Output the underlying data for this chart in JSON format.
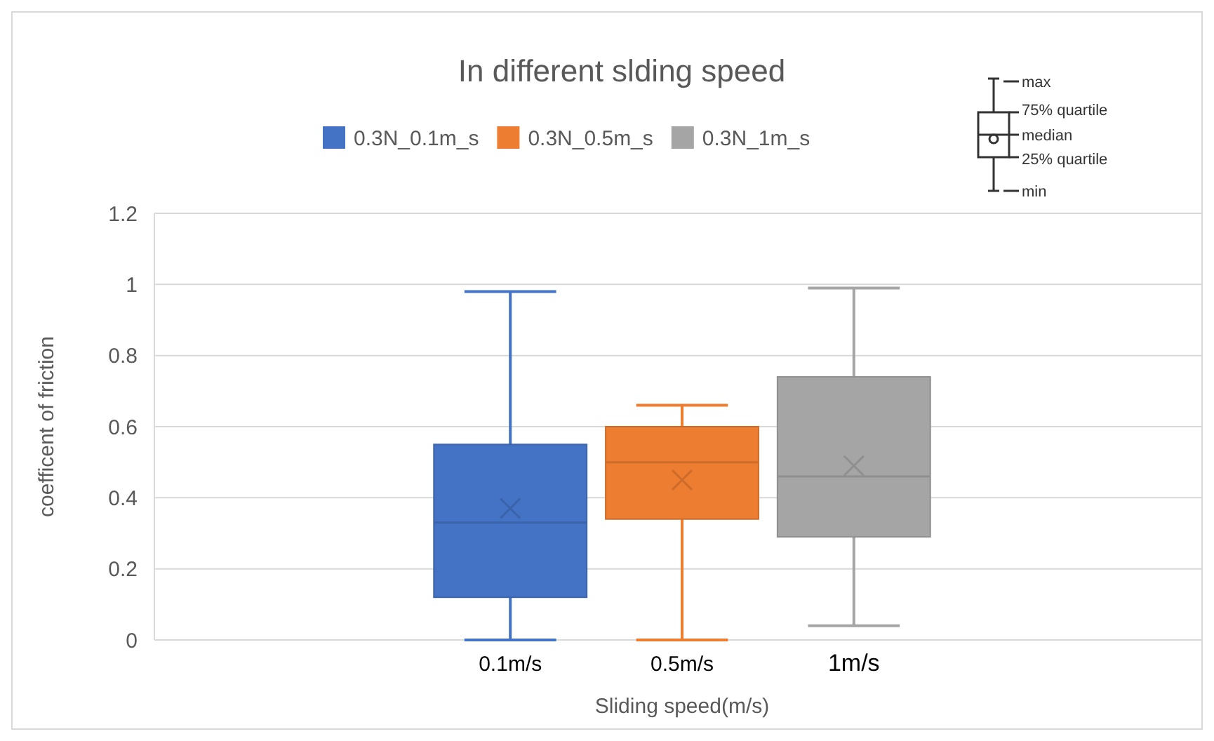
{
  "chart_data": {
    "type": "box",
    "title": "In different slding speed",
    "xlabel": "Sliding speed(m/s)",
    "ylabel": "coefficent of friction",
    "categories": [
      null
    ],
    "series": [
      {
        "name": "0.3N_0.1m_s",
        "color": "#4472c4",
        "boxes": [
          {
            "low": 0,
            "q1": 0.12,
            "median": 0.33,
            "q3": 0.55,
            "high": 0.98,
            "mean": 0.37
          }
        ]
      },
      {
        "name": "0.3N_0.5m_s",
        "color": "#ed7d31",
        "boxes": [
          {
            "low": 0,
            "q1": 0.34,
            "median": 0.5,
            "q3": 0.6,
            "high": 0.66,
            "mean": 0.45
          }
        ]
      },
      {
        "name": "0.3N_1m_s",
        "color": "#a5a5a5",
        "boxes": [
          {
            "low": 0.04,
            "q1": 0.29,
            "median": 0.46,
            "q3": 0.74,
            "high": 0.99,
            "mean": 0.49
          }
        ]
      }
    ],
    "ylim": [
      0,
      1.2
    ],
    "yticks": [
      0,
      0.2,
      0.4,
      0.6,
      0.8,
      1,
      1.2
    ],
    "grid": "y",
    "legend": "top",
    "annotations": [
      "0.1m/s",
      "0.5m/s",
      "1m/s",
      "max",
      "75% quartile",
      "median",
      "25% quartile",
      "min"
    ]
  }
}
